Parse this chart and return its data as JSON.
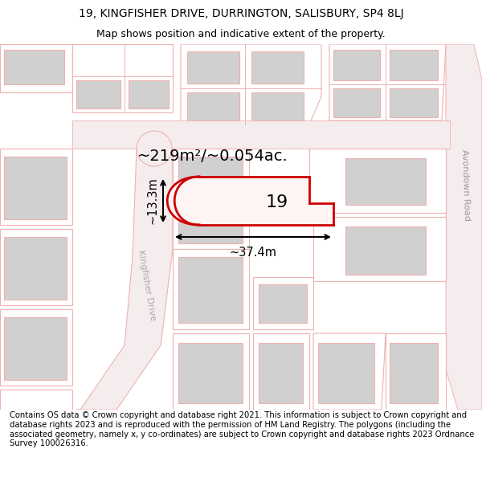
{
  "title_line1": "19, KINGFISHER DRIVE, DURRINGTON, SALISBURY, SP4 8LJ",
  "title_line2": "Map shows position and indicative extent of the property.",
  "area_text": "~219m²/~0.054ac.",
  "label_19": "19",
  "dim_width": "~37.4m",
  "dim_height": "~13.3m",
  "road_label_left": "Kingfisher Drive",
  "road_label_right": "Avondown Road",
  "footer_text": "Contains OS data © Crown copyright and database right 2021. This information is subject to Crown copyright and database rights 2023 and is reproduced with the permission of HM Land Registry. The polygons (including the associated geometry, namely x, y co-ordinates) are subject to Crown copyright and database rights 2023 Ordnance Survey 100026316.",
  "bg_color": "#ffffff",
  "map_bg": "#ffffff",
  "plot_red": "#cc0000",
  "plot_light_pink": "#f5c8c8",
  "outline_pink": "#f0b0b0",
  "building_gray": "#d0d0d0",
  "road_fill": "#f5eded",
  "title_fontsize": 10,
  "subtitle_fontsize": 9,
  "footer_fontsize": 7.2
}
